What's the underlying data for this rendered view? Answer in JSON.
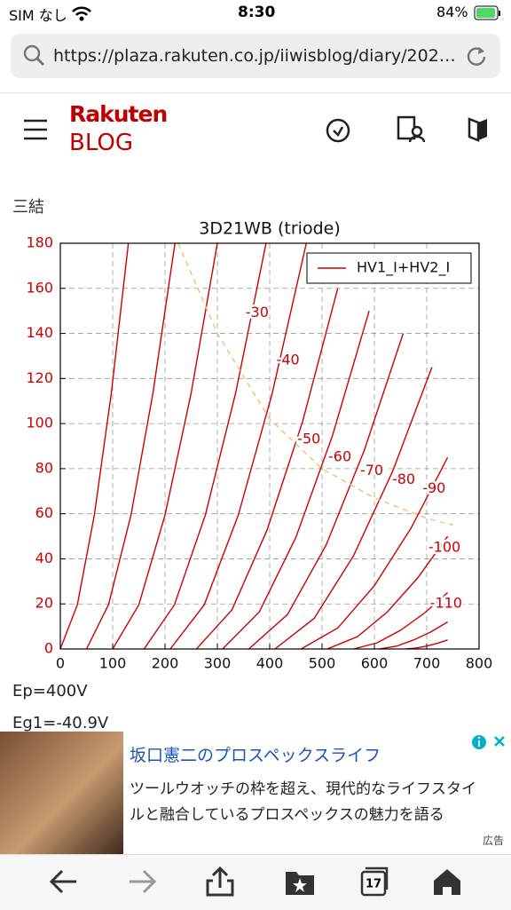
{
  "status_bar": {
    "carrier": "SIM なし",
    "time": "8:30",
    "battery": "84%"
  },
  "address_bar": {
    "url": "https://plaza.rakuten.co.jp/iiwisblog/diary/202…"
  },
  "header": {
    "logo_top": "Rakuten",
    "logo_bottom": "BLOG"
  },
  "article": {
    "heading": "三結",
    "lines": [
      "Ep=400V",
      "Eg1=-40.9V"
    ]
  },
  "chart_data": {
    "type": "line",
    "title": "3D21WB (triode)",
    "xlim": [
      0,
      800
    ],
    "xticks": [
      0,
      100,
      200,
      300,
      400,
      500,
      600,
      700,
      800
    ],
    "ylim": [
      0,
      180
    ],
    "yticks": [
      0,
      20,
      40,
      60,
      80,
      100,
      120,
      140,
      160,
      180
    ],
    "grid": true,
    "legend": "upper right",
    "series": [
      {
        "name": "HV1_I+HV2_I",
        "color": "#cc0000",
        "x": [
          0,
          32.5,
          65,
          97.5,
          130,
          null,
          50,
          92,
          135,
          177,
          219,
          null,
          100,
          150,
          200,
          250,
          300,
          null,
          160,
          218,
          277,
          335,
          393,
          null,
          210,
          275,
          340,
          405,
          470,
          null,
          260,
          328,
          395,
          463,
          530,
          null,
          310,
          380,
          450,
          520,
          590,
          null,
          360,
          434,
          508,
          581,
          655,
          null,
          410,
          485,
          560,
          635,
          710,
          null,
          460,
          530,
          600,
          670,
          740,
          null,
          510,
          568,
          625,
          683,
          740,
          null,
          560,
          605,
          650,
          695,
          740,
          null,
          610,
          643,
          675,
          708,
          740,
          null,
          660,
          680,
          700,
          720,
          740
        ],
        "values": [
          0,
          19.6,
          59.4,
          113.6,
          180,
          null,
          0,
          19.6,
          59.4,
          113.6,
          180,
          null,
          0,
          19.6,
          59.4,
          113.6,
          180,
          null,
          0,
          19.6,
          59.4,
          113.6,
          180,
          null,
          0,
          19.6,
          59.4,
          113.6,
          180,
          null,
          0,
          17.4,
          52.8,
          101,
          160,
          null,
          0,
          16.4,
          49.5,
          94.7,
          150,
          null,
          0,
          15.3,
          46.2,
          88.3,
          140,
          null,
          0,
          13.6,
          41.3,
          78.9,
          125,
          null,
          0,
          9.3,
          28.1,
          53.6,
          85,
          null,
          0,
          5.5,
          16.5,
          31.6,
          50,
          null,
          0,
          2.7,
          8.3,
          15.8,
          25,
          null,
          0,
          1.3,
          4,
          7.6,
          12,
          null,
          0,
          0.4,
          1.3,
          2.5,
          4
        ]
      },
      {
        "color": "#f0c070",
        "style": "dashed",
        "x": [
          225,
          300,
          400,
          500,
          600,
          700,
          750
        ],
        "values": [
          180,
          140,
          102,
          80,
          67,
          58,
          55
        ]
      }
    ],
    "annotations": [
      {
        "text": "-30",
        "x": 376,
        "y": 149
      },
      {
        "text": "-40",
        "x": 435,
        "y": 128
      },
      {
        "text": "-50",
        "x": 475,
        "y": 93
      },
      {
        "text": "-60",
        "x": 534,
        "y": 85
      },
      {
        "text": "-70",
        "x": 595,
        "y": 79
      },
      {
        "text": "-80",
        "x": 656,
        "y": 75
      },
      {
        "text": "-90",
        "x": 714,
        "y": 71
      },
      {
        "text": "-100",
        "x": 734,
        "y": 45
      },
      {
        "text": "-110",
        "x": 737,
        "y": 20
      }
    ]
  },
  "ad": {
    "title": "坂口憲二のプロスペックスライフ",
    "body": [
      "ツールウオッチの枠を超え、現代的なライフスタイ",
      "ルと融合しているプロスペックスの魅力を語る"
    ],
    "tag": "広告"
  },
  "toolbar": {
    "tab_count": "17"
  }
}
